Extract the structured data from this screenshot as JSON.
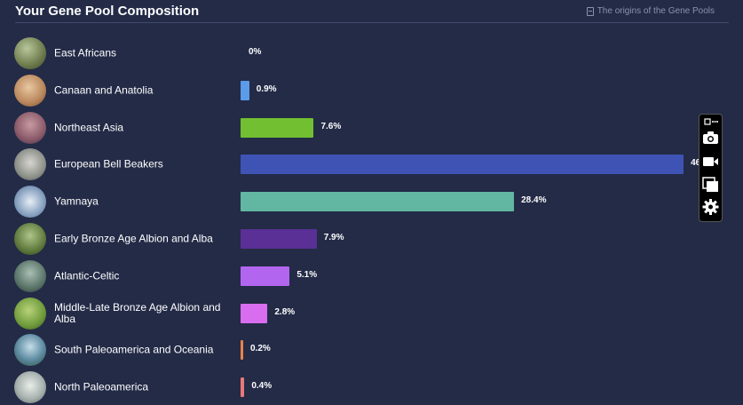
{
  "header": {
    "title": "Your Gene Pool Composition",
    "link": "The origins of the Gene Pools"
  },
  "rows": [
    {
      "label": "East Africans",
      "value": 0,
      "pct": "0%",
      "color": "#5b9be8"
    },
    {
      "label": "Canaan and Anatolia",
      "value": 0.9,
      "pct": "0.9%",
      "color": "#5b9be8"
    },
    {
      "label": "Northeast Asia",
      "value": 7.6,
      "pct": "7.6%",
      "color": "#72c031"
    },
    {
      "label": "European Bell Beakers",
      "value": 46,
      "pct": "46",
      "color": "#3f53b5"
    },
    {
      "label": "Yamnaya",
      "value": 28.4,
      "pct": "28.4%",
      "color": "#62b7a2"
    },
    {
      "label": "Early Bronze Age Albion and Alba",
      "value": 7.9,
      "pct": "7.9%",
      "color": "#5a2f96"
    },
    {
      "label": "Atlantic-Celtic",
      "value": 5.1,
      "pct": "5.1%",
      "color": "#b266f0"
    },
    {
      "label": "Middle-Late Bronze Age Albion and Alba",
      "value": 2.8,
      "pct": "2.8%",
      "color": "#d86df0"
    },
    {
      "label": "South Paleoamerica and Oceania",
      "value": 0.2,
      "pct": "0.2%",
      "color": "#e8834a"
    },
    {
      "label": "North Paleoamerica",
      "value": 0.4,
      "pct": "0.4%",
      "color": "#e8797a"
    }
  ],
  "toolbar": {
    "items": [
      "camera-icon",
      "video-icon",
      "gallery-icon",
      "gear-icon"
    ]
  }
}
